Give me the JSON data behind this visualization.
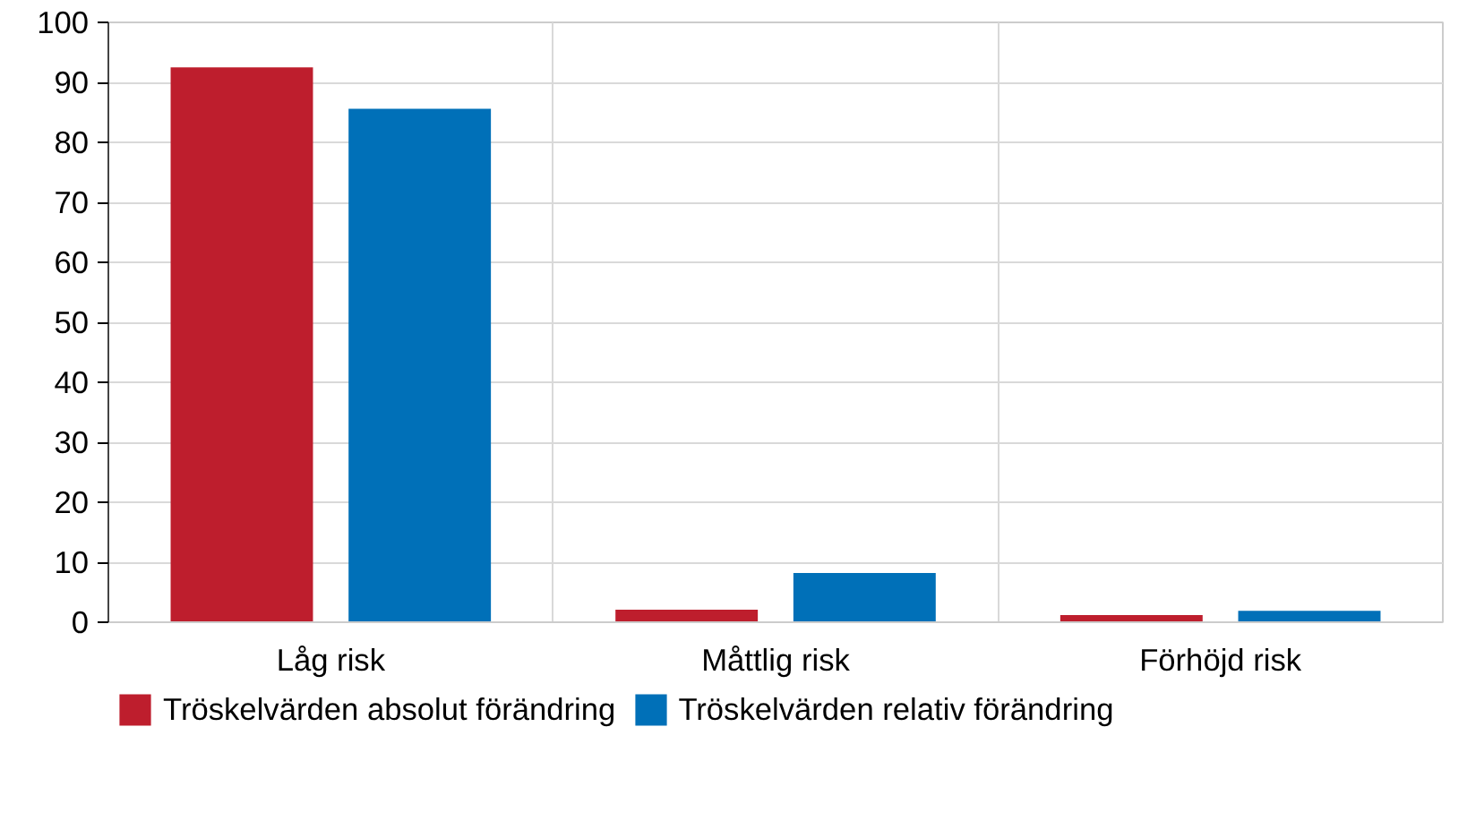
{
  "chart_data": {
    "type": "bar",
    "categories": [
      "Låg risk",
      "Måttlig risk",
      "Förhöjd risk"
    ],
    "series": [
      {
        "name": "Tröskelvärden absolut förändring",
        "color": "#be1e2d",
        "values": [
          92.5,
          2.1,
          1.2
        ]
      },
      {
        "name": "Tröskelvärden relativ förändring",
        "color": "#0070b8",
        "values": [
          85.6,
          8.2,
          1.9
        ]
      }
    ],
    "ylim": [
      0,
      100
    ],
    "yticks": [
      0,
      10,
      20,
      30,
      40,
      50,
      60,
      70,
      80,
      90,
      100
    ],
    "grid": true,
    "legend": "bottom"
  }
}
